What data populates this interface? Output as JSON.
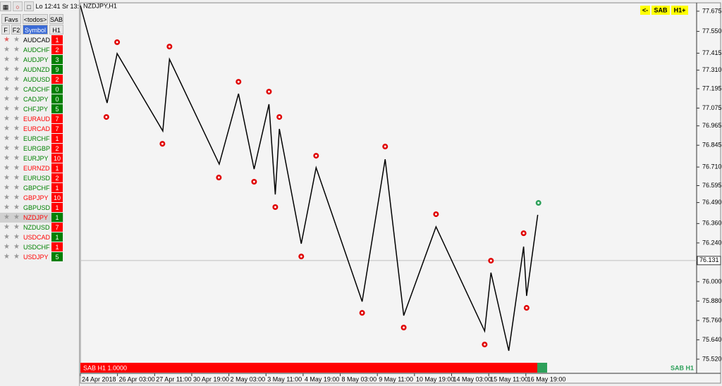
{
  "sidebar": {
    "time_lo": "Lo 12:41",
    "time_sr": "Sr 13:",
    "tabs": [
      "Favs",
      "<todos>",
      "SAB"
    ],
    "columns": [
      "F",
      "F2",
      "Symbol",
      "H1"
    ],
    "rows": [
      {
        "symbol": "AUDCAD",
        "h1": 1,
        "name_color": "#000000",
        "color": "#ff0000"
      },
      {
        "symbol": "AUDCHF",
        "h1": 2,
        "name_color": "#008000",
        "color": "#ff0000"
      },
      {
        "symbol": "AUDJPY",
        "h1": 3,
        "name_color": "#008000",
        "color": "#008000"
      },
      {
        "symbol": "AUDNZD",
        "h1": 9,
        "name_color": "#008000",
        "color": "#008000"
      },
      {
        "symbol": "AUDUSD",
        "h1": 2,
        "name_color": "#008000",
        "color": "#ff0000"
      },
      {
        "symbol": "CADCHF",
        "h1": 0,
        "name_color": "#008000",
        "color": "#008000"
      },
      {
        "symbol": "CADJPY",
        "h1": 0,
        "name_color": "#008000",
        "color": "#008000"
      },
      {
        "symbol": "CHFJPY",
        "h1": 5,
        "name_color": "#008000",
        "color": "#008000"
      },
      {
        "symbol": "EURAUD",
        "h1": 7,
        "name_color": "#ff0000",
        "color": "#ff0000"
      },
      {
        "symbol": "EURCAD",
        "h1": 7,
        "name_color": "#ff0000",
        "color": "#ff0000"
      },
      {
        "symbol": "EURCHF",
        "h1": 1,
        "name_color": "#008000",
        "color": "#ff0000"
      },
      {
        "symbol": "EURGBP",
        "h1": 2,
        "name_color": "#008000",
        "color": "#ff0000"
      },
      {
        "symbol": "EURJPY",
        "h1": 10,
        "name_color": "#008000",
        "color": "#ff0000"
      },
      {
        "symbol": "EURNZD",
        "h1": 1,
        "name_color": "#ff0000",
        "color": "#ff0000"
      },
      {
        "symbol": "EURUSD",
        "h1": 2,
        "name_color": "#008000",
        "color": "#ff0000"
      },
      {
        "symbol": "GBPCHF",
        "h1": 1,
        "name_color": "#008000",
        "color": "#ff0000"
      },
      {
        "symbol": "GBPJPY",
        "h1": 10,
        "name_color": "#ff0000",
        "color": "#ff0000"
      },
      {
        "symbol": "GBPUSD",
        "h1": 1,
        "name_color": "#008000",
        "color": "#ff0000"
      },
      {
        "symbol": "NZDJPY",
        "h1": 1,
        "name_color": "#ff0000",
        "color": "#008000",
        "highlight": true
      },
      {
        "symbol": "NZDUSD",
        "h1": 7,
        "name_color": "#008000",
        "color": "#ff0000"
      },
      {
        "symbol": "USDCAD",
        "h1": 1,
        "name_color": "#ff0000",
        "color": "#008000"
      },
      {
        "symbol": "USDCHF",
        "h1": 1,
        "name_color": "#008000",
        "color": "#ff0000"
      },
      {
        "symbol": "USDJPY",
        "h1": 5,
        "name_color": "#ff0000",
        "color": "#008000"
      }
    ]
  },
  "toolbar": [
    "<-",
    "SAB",
    "H1+"
  ],
  "status_bar": {
    "left": "SAB H1 1.0000",
    "right": "SAB H1"
  },
  "chart_data": {
    "type": "line",
    "title": "NZDJPY,H1",
    "color": "#000000",
    "x": [
      0,
      0.72,
      0.99,
      2.22,
      2.4,
      3.74,
      4.26,
      4.68,
      5.08,
      5.25,
      5.36,
      5.95,
      6.35,
      7.59,
      8.21,
      8.71,
      9.58,
      10.89,
      11.06,
      11.54,
      11.94,
      12.02,
      12.32
    ],
    "values": [
      77.71,
      77.107,
      77.413,
      76.933,
      77.378,
      76.728,
      77.164,
      76.697,
      77.099,
      76.54,
      76.946,
      76.235,
      76.706,
      75.877,
      76.758,
      75.79,
      76.34,
      75.694,
      76.056,
      75.572,
      76.217,
      75.912,
      76.414
    ],
    "signals": {
      "x": [
        0.99,
        0.7,
        2.4,
        2.21,
        4.26,
        3.73,
        5.08,
        4.68,
        5.36,
        5.25,
        6.35,
        5.95,
        8.21,
        7.59,
        9.58,
        8.71,
        11.06,
        10.89,
        11.94,
        12.02,
        12.34
      ],
      "values": [
        77.483,
        77.02,
        77.456,
        76.854,
        77.238,
        76.645,
        77.177,
        76.619,
        77.02,
        76.462,
        76.78,
        76.156,
        76.837,
        75.807,
        76.418,
        75.716,
        76.13,
        75.611,
        76.3,
        75.838,
        76.488
      ],
      "colors": [
        "#e00000",
        "#e00000",
        "#e00000",
        "#e00000",
        "#e00000",
        "#e00000",
        "#e00000",
        "#e00000",
        "#e00000",
        "#e00000",
        "#e00000",
        "#e00000",
        "#e00000",
        "#e00000",
        "#e00000",
        "#e00000",
        "#e00000",
        "#e00000",
        "#e00000",
        "#e00000",
        "#2ea05a"
      ]
    },
    "current": 76.131,
    "xlim": [
      0,
      16.6
    ],
    "xticks": [
      {
        "value": 0,
        "label": "24 Apr 2018"
      },
      {
        "value": 1,
        "label": "26 Apr 03:00"
      },
      {
        "value": 2,
        "label": "27 Apr 11:00"
      },
      {
        "value": 3,
        "label": "30 Apr 19:00"
      },
      {
        "value": 4,
        "label": "2 May 03:00"
      },
      {
        "value": 5,
        "label": "3 May 11:00"
      },
      {
        "value": 6,
        "label": "4 May 19:00"
      },
      {
        "value": 7,
        "label": "8 May 03:00"
      },
      {
        "value": 8,
        "label": "9 May 11:00"
      },
      {
        "value": 9,
        "label": "10 May 19:00"
      },
      {
        "value": 10,
        "label": "14 May 03:00"
      },
      {
        "value": 11,
        "label": "15 May 11:00"
      },
      {
        "value": 12,
        "label": "16 May 19:00"
      }
    ],
    "ylim": [
      75.511,
      77.727
    ],
    "yticks": [
      77.675,
      {
        "value": 77.55,
        "label": "77.550"
      },
      77.415,
      {
        "value": 77.31,
        "label": "77.310"
      },
      77.195,
      77.075,
      76.965,
      76.845,
      {
        "value": 76.71,
        "label": "76.710"
      },
      76.595,
      {
        "value": 76.49,
        "label": "76.490"
      },
      {
        "value": 76.36,
        "label": "76.360"
      },
      {
        "value": 76.24,
        "label": "76.240"
      },
      {
        "value": 76.0,
        "label": "76.000"
      },
      {
        "value": 75.88,
        "label": "75.880"
      },
      {
        "value": 75.76,
        "label": "75.760"
      },
      {
        "value": 75.64,
        "label": "75.640"
      },
      {
        "value": 75.52,
        "label": "75.520"
      }
    ]
  }
}
